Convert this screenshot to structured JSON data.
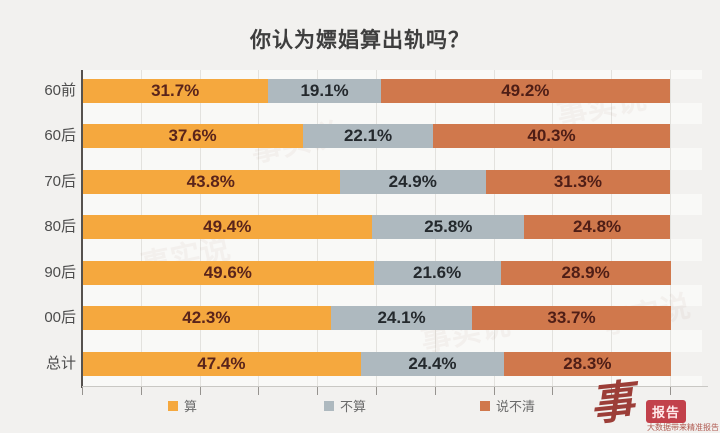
{
  "title": "你认为嫖娼算出轨吗？",
  "chart_data": {
    "type": "bar",
    "orientation": "horizontal",
    "stacked": true,
    "title": "你认为嫖娼算出轨吗？",
    "categories": [
      "60前",
      "60后",
      "70后",
      "80后",
      "90后",
      "00后",
      "总计"
    ],
    "series": [
      {
        "name": "算",
        "color": "#f5a83e",
        "label_color": "#5a241b",
        "values": [
          31.7,
          37.6,
          43.8,
          49.4,
          49.6,
          42.3,
          47.4
        ]
      },
      {
        "name": "不算",
        "color": "#aeb9bf",
        "label_color": "#24292d",
        "values": [
          19.1,
          22.1,
          24.9,
          25.8,
          21.6,
          24.1,
          24.4
        ]
      },
      {
        "name": "说不清",
        "color": "#d0784c",
        "label_color": "#4f1e16",
        "values": [
          49.2,
          40.3,
          31.3,
          24.8,
          28.9,
          33.7,
          28.3
        ]
      }
    ],
    "value_suffix": "%",
    "xlim": [
      0,
      100
    ],
    "grid_interval_percent": 10,
    "grid": true,
    "legend_position": "bottom"
  },
  "watermark": {
    "text": "事实说"
  },
  "logo": {
    "mark": "事",
    "badge": "报告",
    "tagline": "大数据带来精准报告"
  },
  "colors": {
    "background": "#f2f1ef",
    "axis": "#56524f",
    "gridline": "#e3e2de",
    "title_text": "#3e3e3e",
    "category_text": "#4c4c4c",
    "legend_text": "#6b6b6b",
    "brand_red": "#c2414b"
  }
}
